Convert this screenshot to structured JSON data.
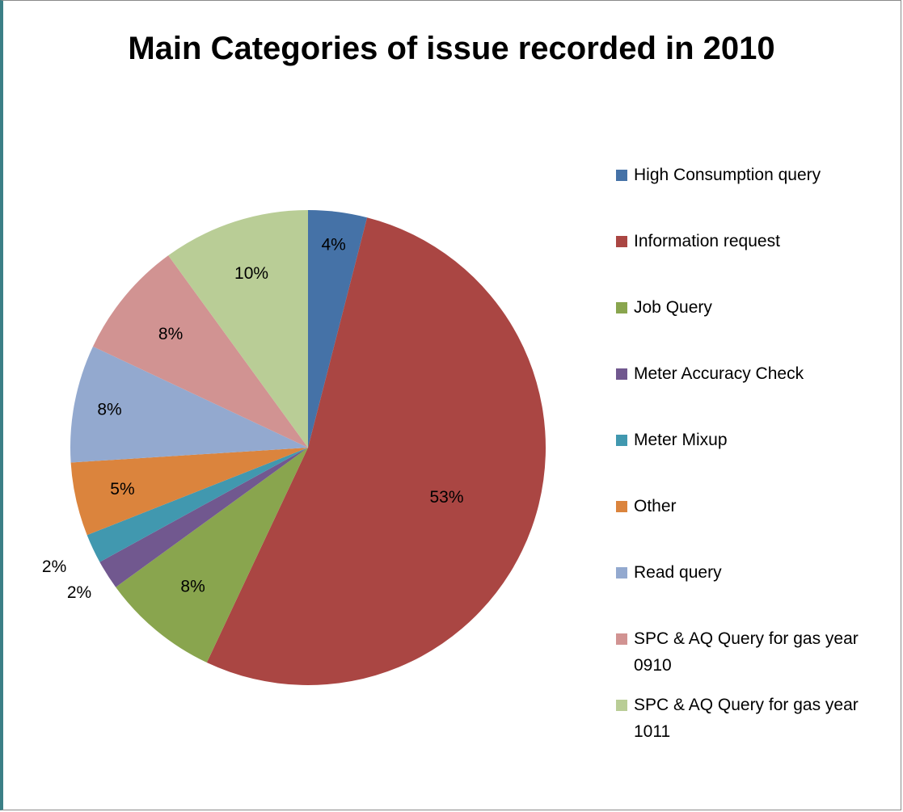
{
  "chart_data": {
    "type": "pie",
    "title": "Main Categories of issue recorded in 2010",
    "start_angle_deg": 0,
    "direction": "clockwise",
    "legend_position": "right",
    "slices": [
      {
        "label": "High Consumption query",
        "value": 4,
        "value_label": "4%",
        "color": "#4572a7"
      },
      {
        "label": "Information request",
        "value": 53,
        "value_label": "53%",
        "color": "#aa4643"
      },
      {
        "label": "Job Query",
        "value": 8,
        "value_label": "8%",
        "color": "#89a54e"
      },
      {
        "label": "Meter Accuracy Check",
        "value": 2,
        "value_label": "2%",
        "color": "#71588f"
      },
      {
        "label": "Meter Mixup",
        "value": 2,
        "value_label": "2%",
        "color": "#4198af"
      },
      {
        "label": "Other",
        "value": 5,
        "value_label": "5%",
        "color": "#db843d"
      },
      {
        "label": "Read query",
        "value": 8,
        "value_label": "8%",
        "color": "#93a9cf"
      },
      {
        "label": "SPC & AQ Query for gas year 0910",
        "value": 8,
        "value_label": "8%",
        "color": "#d19392"
      },
      {
        "label": "SPC & AQ Query for gas year 1011",
        "value": 10,
        "value_label": "10%",
        "color": "#b9cd96"
      }
    ]
  }
}
